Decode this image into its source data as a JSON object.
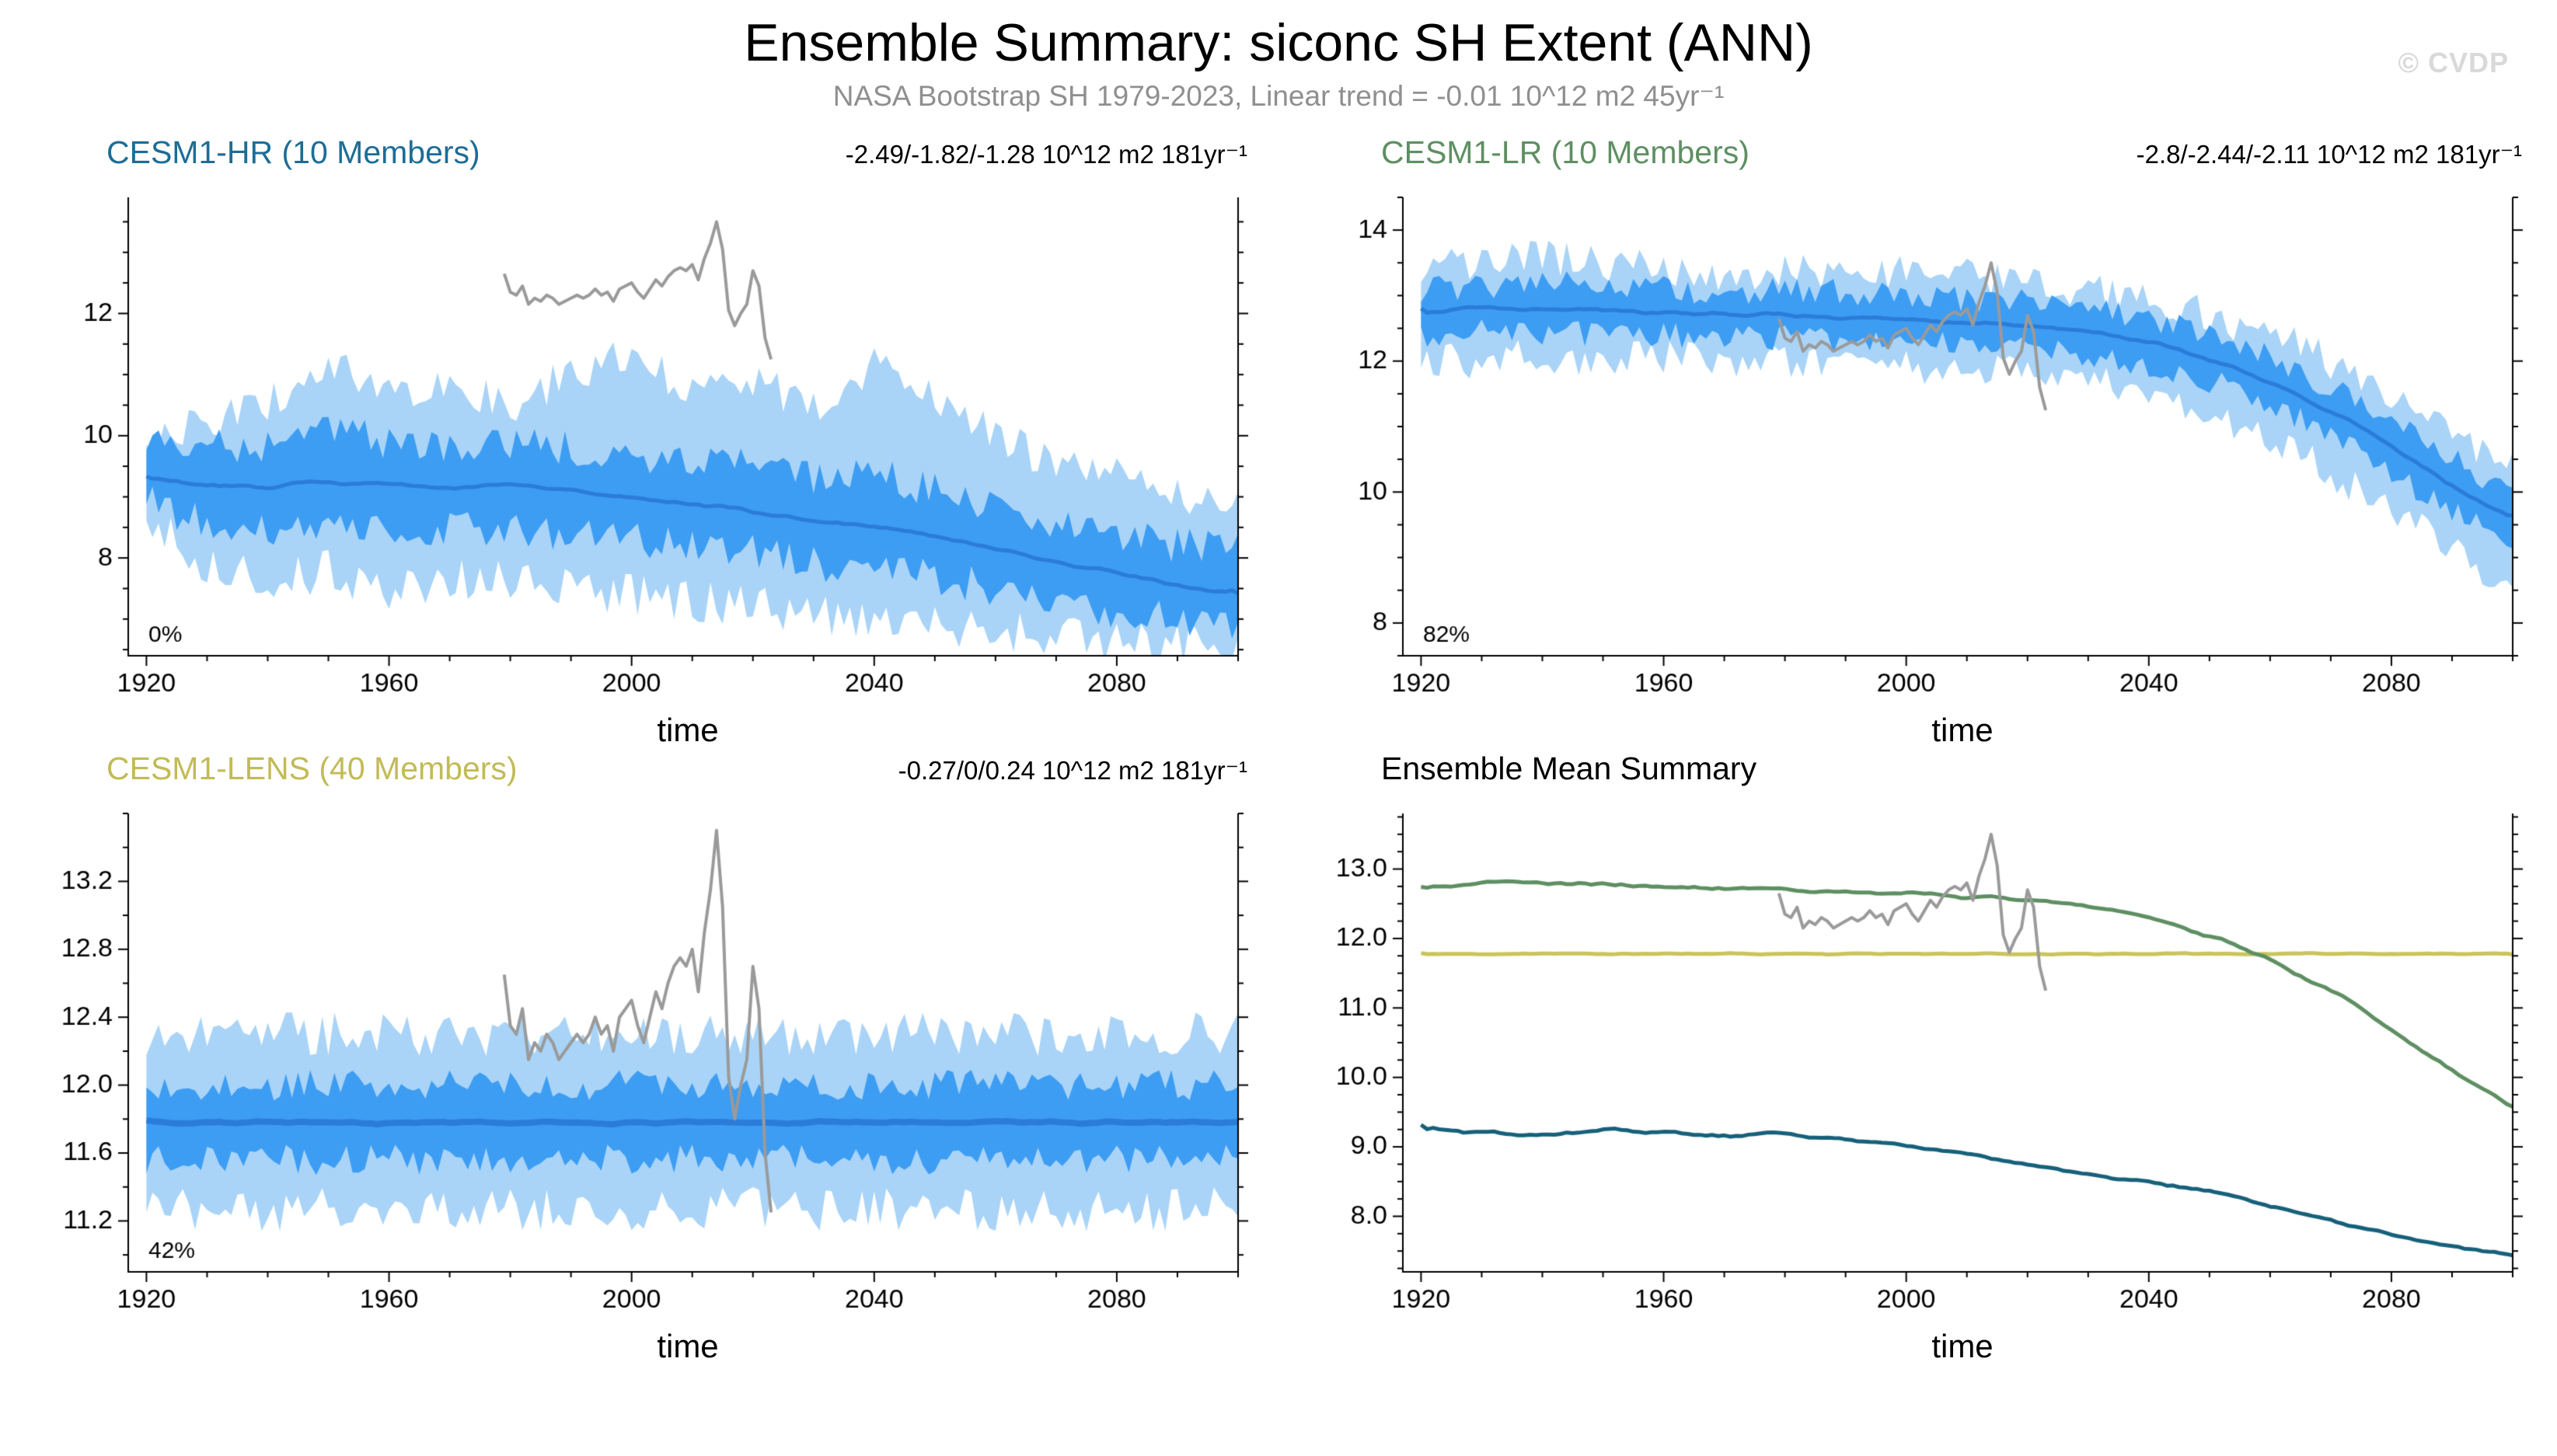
{
  "header": {
    "title": "Ensemble Summary: siconc SH Extent (ANN)",
    "subtitle": "NASA Bootstrap SH 1979-2023, Linear trend = -0.01 10^12 m2 45yr⁻¹",
    "watermark": "© CVDP"
  },
  "colors": {
    "obs_line": "#9a9a9a",
    "axis": "#000000",
    "outer_band_blue": "#a9d4f7",
    "inner_band_blue": "#3d9df3",
    "mean_line_blue": "#2b7cd8"
  },
  "observations": {
    "label": "NASA Bootstrap SH",
    "x_start": 1979,
    "x_end": 2023,
    "values": [
      12.65,
      12.35,
      12.3,
      12.45,
      12.15,
      12.25,
      12.2,
      12.3,
      12.25,
      12.15,
      12.2,
      12.25,
      12.3,
      12.25,
      12.3,
      12.4,
      12.3,
      12.35,
      12.2,
      12.4,
      12.45,
      12.5,
      12.35,
      12.25,
      12.4,
      12.55,
      12.45,
      12.6,
      12.7,
      12.75,
      12.7,
      12.8,
      12.55,
      12.9,
      13.15,
      13.5,
      13.05,
      12.05,
      11.8,
      12.0,
      12.15,
      12.7,
      12.45,
      11.6,
      11.25
    ]
  },
  "chart_data": [
    {
      "type": "line",
      "key": "cesm1-hr",
      "title": "CESM1-HR (10 Members)",
      "title_color": "#1c6d96",
      "trend": "-2.49/-1.82/-1.28 10^12 m2 181yr⁻¹",
      "pct": "0%",
      "xlabel": "time",
      "xlim": [
        1917,
        2100
      ],
      "xticks": [
        1920,
        1960,
        2000,
        2040,
        2080
      ],
      "xtick_labels": [
        "1920",
        "1960",
        "2000",
        "2040",
        "2080"
      ],
      "xminor": 10,
      "ylim": [
        6.4,
        13.9
      ],
      "yticks": [
        8,
        10,
        12
      ],
      "ytick_labels": [
        "8",
        "10",
        "12"
      ],
      "yminor": 0.5,
      "series": {
        "ctrl_x": [
          1920,
          1930,
          1940,
          1950,
          1960,
          1970,
          1980,
          1990,
          2000,
          2010,
          2020,
          2030,
          2040,
          2050,
          2060,
          2070,
          2080,
          2090,
          2100
        ],
        "outer": {
          "hi": [
            9.9,
            10.3,
            10.5,
            11.2,
            10.6,
            10.8,
            10.5,
            11.0,
            11.3,
            10.7,
            10.9,
            10.4,
            11.2,
            10.5,
            10.0,
            9.6,
            9.3,
            9.0,
            8.9
          ],
          "lo": [
            8.7,
            7.9,
            7.6,
            7.8,
            7.4,
            7.7,
            7.6,
            7.5,
            7.4,
            7.3,
            7.2,
            7.1,
            7.0,
            6.9,
            6.8,
            6.7,
            6.6,
            6.6,
            6.6
          ],
          "noise": 0.35,
          "color": "#a9d4f7"
        },
        "inner": {
          "hi": [
            9.8,
            9.9,
            9.8,
            10.1,
            9.9,
            9.8,
            9.9,
            9.8,
            9.7,
            9.6,
            9.5,
            9.3,
            9.4,
            9.1,
            8.9,
            8.6,
            8.4,
            8.2,
            8.1
          ],
          "lo": [
            8.9,
            8.6,
            8.5,
            8.6,
            8.5,
            8.5,
            8.5,
            8.4,
            8.3,
            8.2,
            8.1,
            7.9,
            7.8,
            7.7,
            7.5,
            7.3,
            7.1,
            7.0,
            6.9
          ],
          "noise": 0.3,
          "color": "#3d9df3"
        },
        "mean": {
          "y": [
            9.3,
            9.2,
            9.15,
            9.25,
            9.2,
            9.15,
            9.2,
            9.1,
            9.0,
            8.9,
            8.75,
            8.6,
            8.5,
            8.35,
            8.15,
            7.95,
            7.75,
            7.55,
            7.45
          ],
          "noise": 0.06,
          "color": "#2b7cd8",
          "width": 5
        }
      },
      "show_obs": true
    },
    {
      "type": "line",
      "key": "cesm1-lr",
      "title": "CESM1-LR (10 Members)",
      "title_color": "#5e8f62",
      "trend": "-2.8/-2.44/-2.11 10^12 m2 181yr⁻¹",
      "pct": "82%",
      "xlabel": "time",
      "xlim": [
        1917,
        2100
      ],
      "xticks": [
        1920,
        1960,
        2000,
        2040,
        2080
      ],
      "xtick_labels": [
        "1920",
        "1960",
        "2000",
        "2040",
        "2080"
      ],
      "xminor": 10,
      "ylim": [
        7.5,
        14.5
      ],
      "yticks": [
        8,
        10,
        12,
        14
      ],
      "ytick_labels": [
        "8",
        "10",
        "12",
        "14"
      ],
      "yminor": 0.5,
      "series": {
        "ctrl_x": [
          1920,
          1930,
          1940,
          1950,
          1960,
          1970,
          1980,
          1990,
          2000,
          2010,
          2020,
          2030,
          2040,
          2050,
          2060,
          2070,
          2080,
          2090,
          2100
        ],
        "outer": {
          "hi": [
            13.4,
            13.5,
            13.6,
            13.5,
            13.4,
            13.3,
            13.4,
            13.3,
            13.35,
            13.3,
            13.2,
            13.1,
            12.9,
            12.7,
            12.4,
            12.0,
            11.5,
            10.9,
            10.4
          ],
          "lo": [
            12.0,
            12.0,
            12.1,
            12.0,
            12.05,
            12.0,
            12.0,
            11.95,
            11.9,
            11.85,
            11.8,
            11.7,
            11.5,
            11.2,
            10.8,
            10.3,
            9.8,
            9.2,
            8.5
          ],
          "noise": 0.28,
          "color": "#a9d4f7"
        },
        "inner": {
          "hi": [
            13.1,
            13.15,
            13.2,
            13.15,
            13.1,
            13.05,
            13.1,
            13.05,
            13.0,
            12.95,
            12.9,
            12.8,
            12.65,
            12.4,
            12.05,
            11.6,
            11.1,
            10.5,
            10.0
          ],
          "lo": [
            12.4,
            12.45,
            12.45,
            12.4,
            12.4,
            12.35,
            12.35,
            12.3,
            12.3,
            12.25,
            12.2,
            12.1,
            11.95,
            11.7,
            11.35,
            10.9,
            10.3,
            9.7,
            9.2
          ],
          "noise": 0.2,
          "color": "#3d9df3"
        },
        "mean": {
          "y": [
            12.75,
            12.8,
            12.8,
            12.78,
            12.75,
            12.72,
            12.7,
            12.68,
            12.65,
            12.6,
            12.55,
            12.45,
            12.3,
            12.05,
            11.7,
            11.25,
            10.7,
            10.1,
            9.6
          ],
          "noise": 0.06,
          "color": "#2b7cd8",
          "width": 5
        }
      },
      "show_obs": true
    },
    {
      "type": "line",
      "key": "cesm1-lens",
      "title": "CESM1-LENS (40 Members)",
      "title_color": "#c2bb55",
      "trend": "-0.27/0/0.24 10^12 m2 181yr⁻¹",
      "pct": "42%",
      "xlabel": "time",
      "xlim": [
        1917,
        2100
      ],
      "xticks": [
        1920,
        1960,
        2000,
        2040,
        2080
      ],
      "xtick_labels": [
        "1920",
        "1960",
        "2000",
        "2040",
        "2080"
      ],
      "xminor": 10,
      "ylim": [
        10.9,
        13.6
      ],
      "yticks": [
        11.2,
        11.6,
        12.0,
        12.4,
        12.8,
        13.2
      ],
      "ytick_labels": [
        "11.2",
        "11.6",
        "12.0",
        "12.4",
        "12.8",
        "13.2"
      ],
      "yminor": 0.2,
      "series": {
        "ctrl_x": [
          1920,
          1930,
          1940,
          1950,
          1960,
          1970,
          1980,
          1990,
          2000,
          2010,
          2020,
          2030,
          2040,
          2050,
          2060,
          2070,
          2080,
          2090,
          2100
        ],
        "outer": {
          "hi": 12.3,
          "lo": 11.27,
          "noise": 0.13,
          "color": "#a9d4f7"
        },
        "inner": {
          "hi": 12.0,
          "lo": 11.56,
          "noise": 0.09,
          "color": "#3d9df3"
        },
        "mean": {
          "y": 11.78,
          "noise": 0.015,
          "color": "#2b7cd8",
          "width": 8
        }
      },
      "show_obs": true
    },
    {
      "type": "line",
      "key": "ensemble-mean",
      "title": "Ensemble Mean Summary",
      "title_color": "#000000",
      "trend": "",
      "pct": "",
      "xlabel": "time",
      "xlim": [
        1917,
        2100
      ],
      "xticks": [
        1920,
        1960,
        2000,
        2040,
        2080
      ],
      "xtick_labels": [
        "1920",
        "1960",
        "2000",
        "2040",
        "2080"
      ],
      "xminor": 10,
      "ylim": [
        7.2,
        13.8
      ],
      "yticks": [
        8.0,
        9.0,
        10.0,
        11.0,
        12.0,
        13.0
      ],
      "ytick_labels": [
        "8.0",
        "9.0",
        "10.0",
        "11.0",
        "12.0",
        "13.0"
      ],
      "yminor": 0.25,
      "lines": [
        {
          "name": "CESM1-LENS",
          "color": "#c9c45c",
          "width": 5,
          "noise": 0.02,
          "ctrl_x": [
            1920,
            1930,
            1940,
            1950,
            1960,
            1970,
            1980,
            1990,
            2000,
            2010,
            2020,
            2030,
            2040,
            2050,
            2060,
            2070,
            2080,
            2090,
            2100
          ],
          "y": 11.78
        },
        {
          "name": "CESM1-LR",
          "color": "#5e8f62",
          "width": 5,
          "noise": 0.05,
          "ctrl_x": [
            1920,
            1930,
            1940,
            1950,
            1960,
            1970,
            1980,
            1990,
            2000,
            2010,
            2020,
            2030,
            2040,
            2050,
            2060,
            2070,
            2080,
            2090,
            2100
          ],
          "y": [
            12.75,
            12.8,
            12.8,
            12.78,
            12.75,
            12.72,
            12.7,
            12.68,
            12.65,
            12.6,
            12.55,
            12.45,
            12.3,
            12.05,
            11.7,
            11.25,
            10.7,
            10.1,
            9.6
          ]
        },
        {
          "name": "CESM1-HR",
          "color": "#16607a",
          "width": 5,
          "noise": 0.05,
          "ctrl_x": [
            1920,
            1930,
            1940,
            1950,
            1960,
            1970,
            1980,
            1990,
            2000,
            2010,
            2020,
            2030,
            2040,
            2050,
            2060,
            2070,
            2080,
            2090,
            2100
          ],
          "y": [
            9.3,
            9.2,
            9.15,
            9.25,
            9.2,
            9.15,
            9.2,
            9.1,
            9.0,
            8.9,
            8.75,
            8.6,
            8.5,
            8.35,
            8.15,
            7.95,
            7.75,
            7.55,
            7.45
          ]
        }
      ],
      "show_obs": true
    }
  ]
}
